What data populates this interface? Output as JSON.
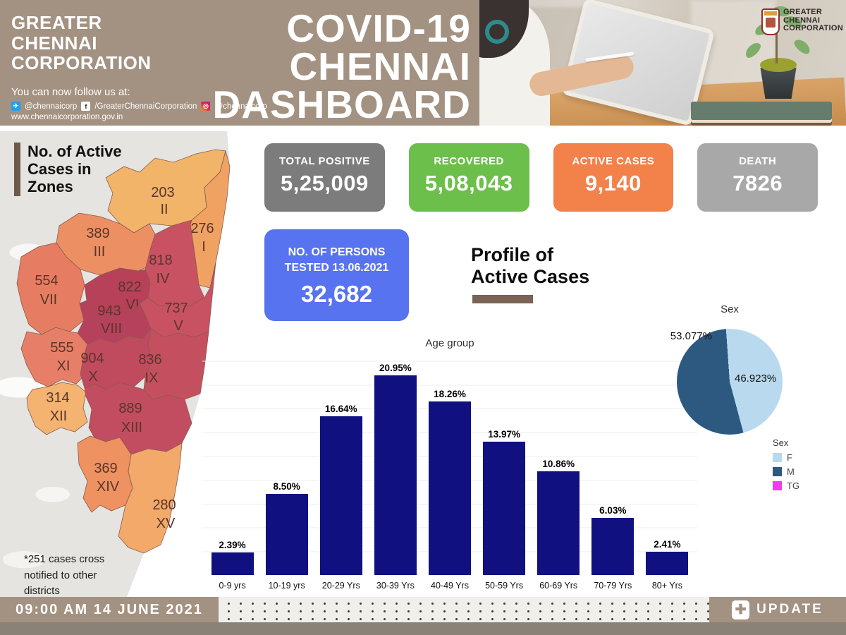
{
  "header": {
    "org_name_lines": [
      "GREATER",
      "CHENNAI",
      "CORPORATION"
    ],
    "title_lines": [
      "COVID-19",
      "CHENNAI",
      "DASHBOARD"
    ],
    "follow_text": "You can now follow us at:",
    "social": {
      "twitter": "@chennaicorp",
      "facebook": "/GreaterChennaiCorporation",
      "instagram": "@chennaicorp"
    },
    "website": "www.chennaicorporation.gov.in",
    "photo_logo_lines": [
      "GREATER",
      "CHENNAI",
      "CORPORATION"
    ]
  },
  "stat_cards": [
    {
      "id": "total-positive",
      "label": "TOTAL POSITIVE",
      "value": "5,25,009",
      "bg": "#7c7c7c"
    },
    {
      "id": "recovered",
      "label": "RECOVERED",
      "value": "5,08,043",
      "bg": "#6bbf4a"
    },
    {
      "id": "active-cases",
      "label": "ACTIVE CASES",
      "value": "9,140",
      "bg": "#f2814a"
    },
    {
      "id": "death",
      "label": "DEATH",
      "value": "7826",
      "bg": "#a8a8a8"
    }
  ],
  "tested_card": {
    "label_line1": "NO. OF PERSONS",
    "label_line2": "TESTED 13.06.2021",
    "value": "32,682",
    "bg": "#5873ef"
  },
  "profile_heading": {
    "line1": "Profile of",
    "line2": "Active Cases"
  },
  "map": {
    "title_lines": [
      "No. of Active",
      "Cases in",
      "Zones"
    ],
    "footnote_lines": [
      "*251 cases cross",
      "notified to other",
      "districts"
    ],
    "zones": [
      {
        "zone": "II",
        "cases": "203",
        "color": "#f1b469"
      },
      {
        "zone": "I",
        "cases": "276",
        "color": "#f0a263"
      },
      {
        "zone": "III",
        "cases": "389",
        "color": "#ec9063"
      },
      {
        "zone": "IV",
        "cases": "818",
        "color": "#c85162"
      },
      {
        "zone": "VII",
        "cases": "554",
        "color": "#e67d62"
      },
      {
        "zone": "VI",
        "cases": "822",
        "color": "#b64159"
      },
      {
        "zone": "VIII",
        "cases": "943",
        "color": "#b6415c"
      },
      {
        "zone": "V",
        "cases": "737",
        "color": "#c85162"
      },
      {
        "zone": "XI",
        "cases": "555",
        "color": "#e77f68"
      },
      {
        "zone": "X",
        "cases": "904",
        "color": "#c04a5e"
      },
      {
        "zone": "IX",
        "cases": "836",
        "color": "#c4505f"
      },
      {
        "zone": "XII",
        "cases": "314",
        "color": "#f4b371"
      },
      {
        "zone": "XIII",
        "cases": "889",
        "color": "#c24d60"
      },
      {
        "zone": "XIV",
        "cases": "369",
        "color": "#ed9260"
      },
      {
        "zone": "XV",
        "cases": "280",
        "color": "#f2a969"
      }
    ]
  },
  "chart_data": [
    {
      "type": "bar",
      "title": "Age group",
      "categories": [
        "0-9 yrs",
        "10-19 yrs",
        "20-29 Yrs",
        "30-39 Yrs",
        "40-49 Yrs",
        "50-59 Yrs",
        "60-69 Yrs",
        "70-79 Yrs",
        "80+ Yrs"
      ],
      "values": [
        2.39,
        8.5,
        16.64,
        20.95,
        18.26,
        13.97,
        10.86,
        6.03,
        2.41
      ],
      "value_labels": [
        "2.39%",
        "8.50%",
        "16.64%",
        "20.95%",
        "18.26%",
        "13.97%",
        "10.86%",
        "6.03%",
        "2.41%"
      ],
      "bar_color": "#101080",
      "xlabel": "",
      "ylabel": "",
      "ylim": [
        0,
        23
      ],
      "grid": true
    },
    {
      "type": "pie",
      "title": "Sex",
      "labels": [
        "F",
        "M",
        "TG"
      ],
      "values": [
        46.923,
        53.077,
        0
      ],
      "value_labels": {
        "F": "46.923%",
        "M": "53.077%"
      },
      "colors": [
        "#b9daee",
        "#2d5981",
        "#ee3cea"
      ],
      "legend_title": "Sex",
      "legend_position": "below-right"
    }
  ],
  "footer": {
    "timestamp": "09:00 AM 14 JUNE 2021",
    "update_label": "UPDATE"
  }
}
